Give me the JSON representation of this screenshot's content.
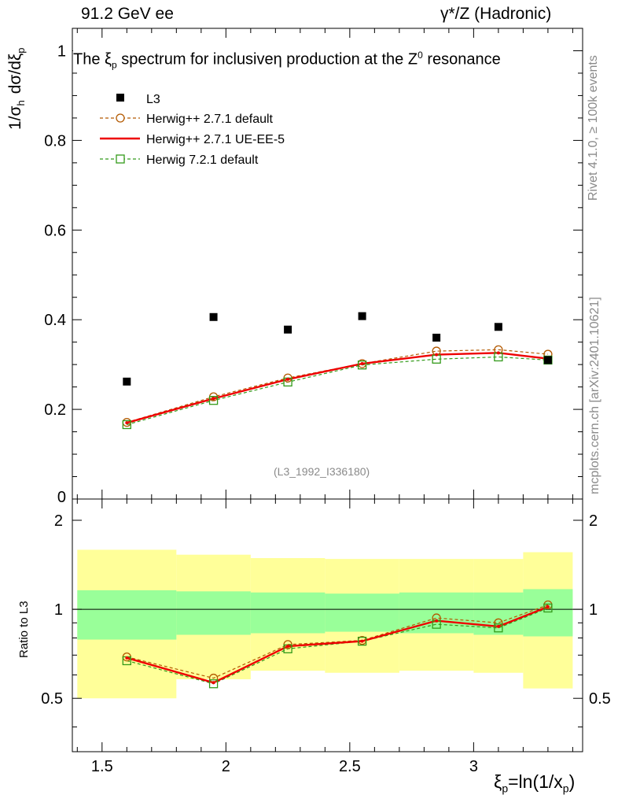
{
  "header": {
    "left": "91.2 GeV ee",
    "right_gamma": "γ",
    "right_rest": "*/Z (Hadronic)"
  },
  "side_text": {
    "rivet": "Rivet 4.1.0, ≥ 100k events",
    "mcplots": "mcplots.cern.ch [arXiv:2401.10621]"
  },
  "chart_data": {
    "type": "scatter",
    "title": "The ξp spectrum for inclusiveη production at the Z0 resonance",
    "title_parts": {
      "pre": "The ξ",
      "sub": "p",
      "mid": " spectrum for inclusiveη production at the Z",
      "sup": "0",
      "post": " resonance"
    },
    "watermark": "(L3_1992_I336180)",
    "xlabel": "ξp=ln(1/xp)",
    "xlabel_parts": {
      "a": "ξ",
      "b": "p",
      "c": "=ln(1/x",
      "d": "p",
      "e": ")"
    },
    "ylabel": "1/σh dσ/dξp",
    "ylabel_parts": {
      "a": "1/σ",
      "b": "h",
      "c": "dσ/dξ",
      "d": "p"
    },
    "xlim": [
      1.38,
      3.44
    ],
    "ylim": [
      0,
      1.05
    ],
    "x_ticks": [
      "1.5",
      "2",
      "2.5",
      "3"
    ],
    "y_ticks": [
      "0",
      "0.2",
      "0.4",
      "0.6",
      "0.8",
      "1"
    ],
    "x": [
      1.6,
      1.95,
      2.25,
      2.55,
      2.85,
      3.1,
      3.3
    ],
    "bin_edges": [
      1.4,
      1.8,
      2.1,
      2.4,
      2.7,
      3.0,
      3.2,
      3.4
    ],
    "series": [
      {
        "name": "L3",
        "color": "#000000",
        "style": "square",
        "values": [
          0.262,
          0.406,
          0.378,
          0.408,
          0.36,
          0.384,
          0.31
        ]
      },
      {
        "name": "Herwig++ 2.7.1 default",
        "color": "#b35900",
        "style": "circle-dashed",
        "values": [
          0.171,
          0.228,
          0.27,
          0.302,
          0.33,
          0.333,
          0.323
        ]
      },
      {
        "name": "Herwig++ 2.7.1 UE-EE-5",
        "color": "#ee0000",
        "style": "solid",
        "values": [
          0.17,
          0.224,
          0.267,
          0.302,
          0.322,
          0.326,
          0.313
        ]
      },
      {
        "name": "Herwig 7.2.1 default",
        "color": "#339a1a",
        "style": "square-dashed",
        "values": [
          0.166,
          0.22,
          0.261,
          0.299,
          0.312,
          0.317,
          0.31
        ]
      }
    ],
    "ratio": {
      "ylabel": "Ratio to L3",
      "ylim": [
        0.33,
        2.36
      ],
      "y_ticks": [
        "0.5",
        "1",
        "2"
      ],
      "band_inner": [
        [
          0.79,
          1.16
        ],
        [
          0.82,
          1.15
        ],
        [
          0.83,
          1.14
        ],
        [
          0.84,
          1.13
        ],
        [
          0.83,
          1.14
        ],
        [
          0.82,
          1.14
        ],
        [
          0.81,
          1.17
        ]
      ],
      "band_outer": [
        [
          0.5,
          1.59
        ],
        [
          0.58,
          1.53
        ],
        [
          0.62,
          1.49
        ],
        [
          0.61,
          1.48
        ],
        [
          0.62,
          1.48
        ],
        [
          0.61,
          1.48
        ],
        [
          0.54,
          1.56
        ]
      ],
      "series": [
        {
          "name": "Herwig++ 2.7.1 default",
          "values": [
            0.69,
            0.585,
            0.76,
            0.785,
            0.935,
            0.9,
            1.035
          ]
        },
        {
          "name": "Herwig++ 2.7.1 UE-EE-5",
          "values": [
            0.685,
            0.565,
            0.75,
            0.78,
            0.915,
            0.875,
            1.02
          ]
        },
        {
          "name": "Herwig 7.2.1 default",
          "values": [
            0.67,
            0.56,
            0.735,
            0.78,
            0.89,
            0.865,
            1.01
          ]
        }
      ],
      "band_colors": {
        "inner": "#99ff99",
        "outer": "#ffff99"
      }
    }
  }
}
